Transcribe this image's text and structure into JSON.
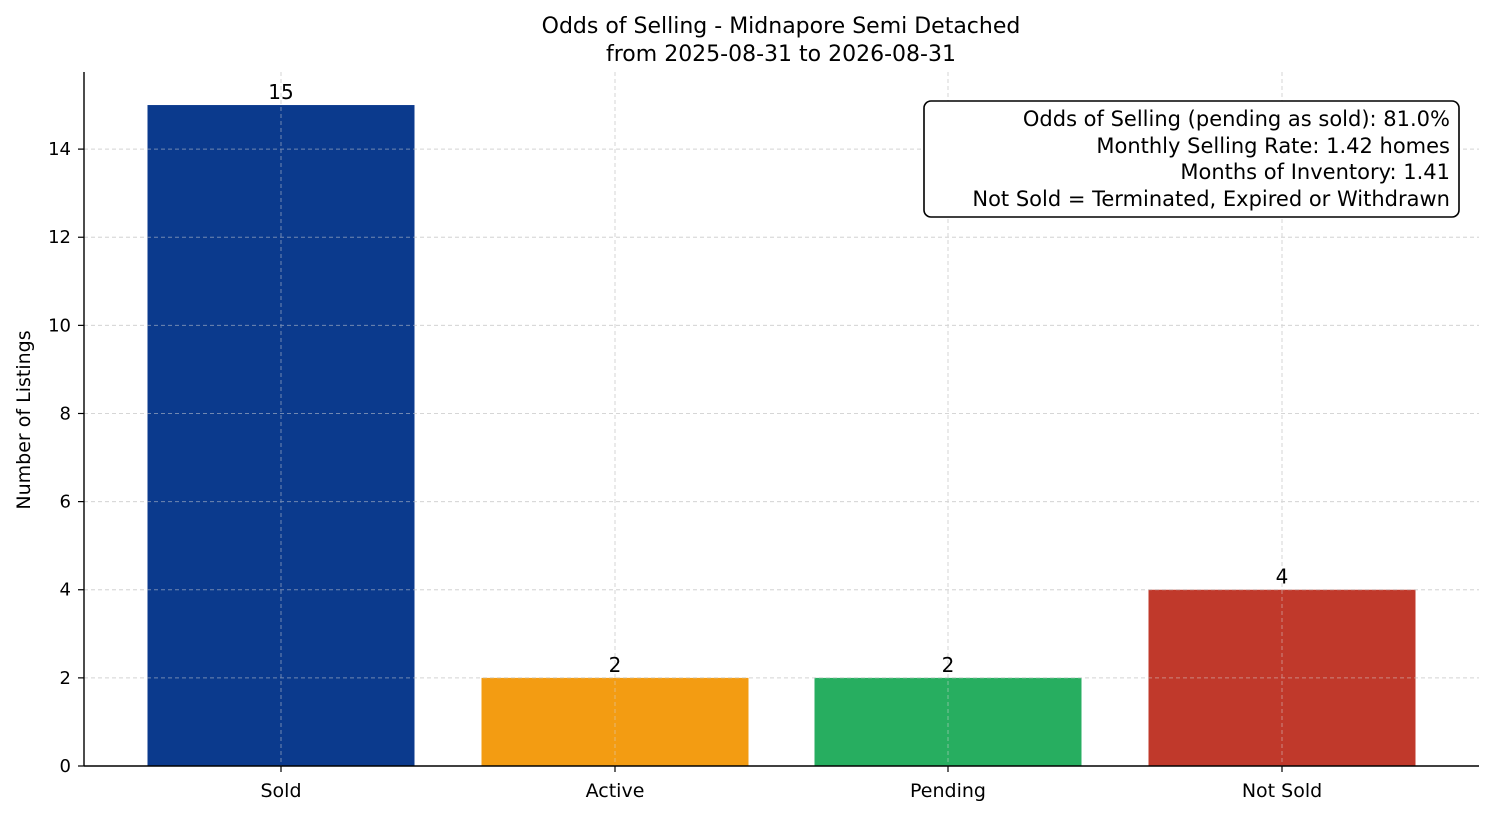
{
  "chart_data": {
    "type": "bar",
    "title": "Odds of Selling - Midnapore Semi Detached",
    "subtitle": "from 2025-08-31 to 2026-08-31",
    "xlabel": "",
    "ylabel": "Number of Listings",
    "categories": [
      "Sold",
      "Active",
      "Pending",
      "Not Sold"
    ],
    "values": [
      15,
      2,
      2,
      4
    ],
    "bar_labels": [
      "15",
      "2",
      "2",
      "4"
    ],
    "colors": [
      "#0b3a8d",
      "#f39c12",
      "#27ae60",
      "#c0392b"
    ],
    "ylim": [
      0,
      15.75
    ],
    "yticks": [
      0,
      2,
      4,
      6,
      8,
      10,
      12,
      14
    ],
    "grid": true,
    "info_box": {
      "placement": "top-right",
      "lines": [
        "Odds of Selling (pending as sold): 81.0%",
        "Monthly Selling Rate: 1.42 homes",
        "Months of Inventory: 1.41",
        "Not Sold = Terminated, Expired or Withdrawn"
      ]
    }
  }
}
